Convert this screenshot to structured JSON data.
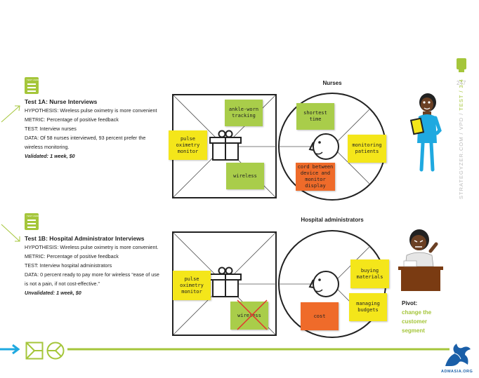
{
  "page_number": "247",
  "side_nav": {
    "part1": "STRATEGYZER.COM / VPD / ",
    "part2": "TEST / 3.4"
  },
  "test1a": {
    "title": "Test 1A: Nurse Interviews",
    "hypothesis": "HYPOTHESIS: Wireless pulse oximetry is more convenient",
    "metric": "METRIC: Percentage of positive feedback",
    "test": "TEST: Interview nurses",
    "data": "DATA: Of 58 nurses interviewed, 93 percent prefer the wireless monitoring.",
    "result": "Validated: 1 week, $0"
  },
  "test1b": {
    "title": "Test 1B: Hospital Administrator Interviews",
    "hypothesis": "HYPOTHESIS: Wireless pulse oximetry is more convenient.",
    "metric": "METRIC: Percentage of positive feedback",
    "test": "TEST: Interview hospital administrators",
    "data": "DATA: 0 percent ready to pay more for wireless “ease of use is not a pain, if not cost-effective.”",
    "result": "Unvalidated: 1 week, $0"
  },
  "canvas1": {
    "segment": "Nurses",
    "stickies": {
      "ankle": "ankle-worn tracking",
      "pulse": "pulse oximetry monitor",
      "wireless": "wireless",
      "shortest": "shortest time",
      "monitoring": "monitoring patients",
      "cord": "cord between device and monitor display"
    }
  },
  "canvas2": {
    "segment": "Hospital administrators",
    "stickies": {
      "pulse": "pulse oximetry monitor",
      "wireless": "wireless",
      "buying": "buying materials",
      "managing": "managing budgets",
      "cost": "cost"
    }
  },
  "pivot": {
    "label": "Pivot:",
    "text": "change the customer segment"
  },
  "footer": {
    "brand": "ADMASIA.ORG"
  },
  "colors": {
    "accent_green": "#a5c63b",
    "sticky_yellow": "#f4e61a",
    "sticky_orange": "#ef6b2a",
    "arrow_blue": "#1fa9e0"
  }
}
